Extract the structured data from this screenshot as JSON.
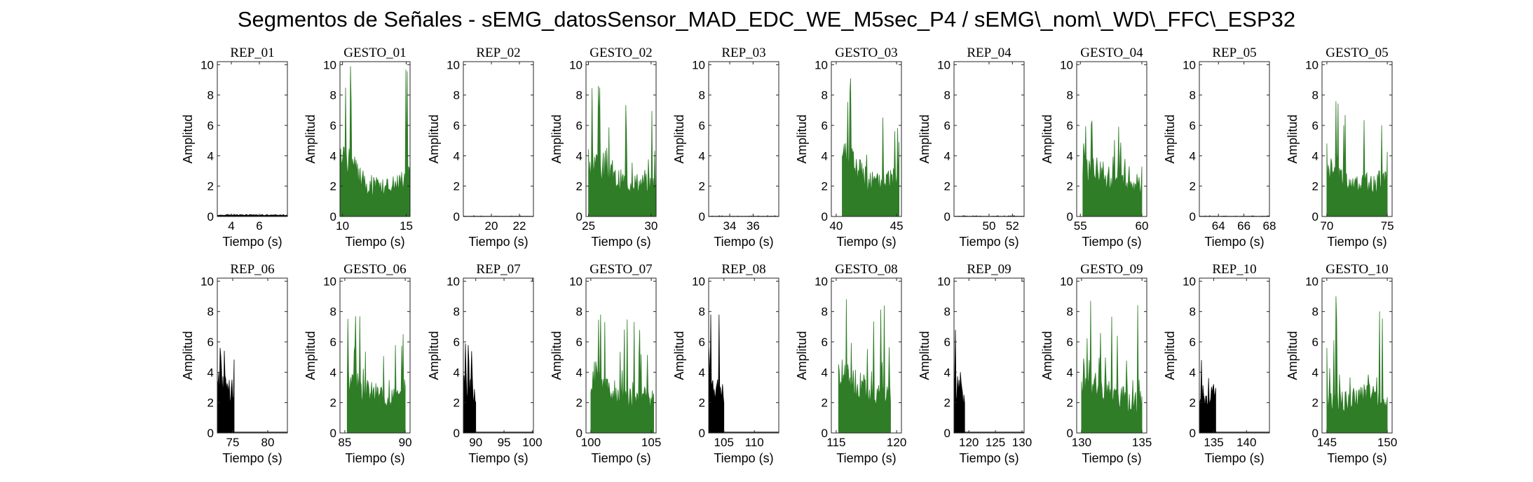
{
  "title": "Segmentos de Señales - sEMG_datosSensor_MAD_EDC_WE_M5sec_P4 / sEMG\\_nom\\_WD\\_FFC\\_ESP32",
  "colors": {
    "rep": "#000000",
    "gesto": "#2f7d27"
  },
  "chart_data": [
    {
      "type": "area",
      "title": "REP_01",
      "kind": "rep",
      "xlabel": "Tiempo (s)",
      "ylabel": "Amplitud",
      "xlim": [
        3,
        8
      ],
      "ylim": [
        0,
        10.2
      ],
      "xticks": [
        4,
        6
      ],
      "yticks": [
        0,
        2,
        4,
        6,
        8,
        10
      ],
      "active": [
        3,
        8
      ],
      "env": [
        0.1,
        0.1,
        0.12,
        0.1,
        0.1
      ],
      "peak": 0.15
    },
    {
      "type": "area",
      "title": "GESTO_01",
      "kind": "gesto",
      "xlabel": "Tiempo (s)",
      "ylabel": "Amplitud",
      "xlim": [
        9.8,
        15.3
      ],
      "ylim": [
        0,
        10.2
      ],
      "xticks": [
        10,
        15
      ],
      "yticks": [
        0,
        2,
        4,
        6,
        8,
        10
      ],
      "active": [
        9.8,
        15.3
      ],
      "env": [
        5,
        3.5,
        2.5,
        2.2,
        2.5,
        3
      ],
      "peak": 9.9
    },
    {
      "type": "area",
      "title": "REP_02",
      "kind": "rep",
      "xlabel": "Tiempo (s)",
      "ylabel": "Amplitud",
      "xlim": [
        18,
        23
      ],
      "ylim": [
        0,
        10.2
      ],
      "xticks": [
        20,
        22
      ],
      "yticks": [
        0,
        2,
        4,
        6,
        8,
        10
      ],
      "active": [
        18,
        23
      ],
      "env": [
        0.02,
        0.02
      ],
      "peak": 0.05
    },
    {
      "type": "area",
      "title": "GESTO_02",
      "kind": "gesto",
      "xlabel": "Tiempo (s)",
      "ylabel": "Amplitud",
      "xlim": [
        24.8,
        30.4
      ],
      "ylim": [
        0,
        10.2
      ],
      "xticks": [
        25,
        30
      ],
      "yticks": [
        0,
        2,
        4,
        6,
        8,
        10
      ],
      "active": [
        25,
        30.4
      ],
      "env": [
        4.5,
        3.6,
        2.8,
        2.6,
        2.5,
        2.4
      ],
      "peak": 8.6
    },
    {
      "type": "area",
      "title": "REP_03",
      "kind": "rep",
      "xlabel": "Tiempo (s)",
      "ylabel": "Amplitud",
      "xlim": [
        32.2,
        38.2
      ],
      "ylim": [
        0,
        10.2
      ],
      "xticks": [
        34,
        36
      ],
      "yticks": [
        0,
        2,
        4,
        6,
        8,
        10
      ],
      "active": [
        32.2,
        38.2
      ],
      "env": [
        0.02,
        0.02
      ],
      "peak": 0.05
    },
    {
      "type": "area",
      "title": "GESTO_03",
      "kind": "gesto",
      "xlabel": "Tiempo (s)",
      "ylabel": "Amplitud",
      "xlim": [
        39.6,
        45.4
      ],
      "ylim": [
        0,
        10.2
      ],
      "xticks": [
        40,
        45
      ],
      "yticks": [
        0,
        2,
        4,
        6,
        8,
        10
      ],
      "active": [
        40.5,
        45.2
      ],
      "env": [
        5,
        4,
        3,
        2.5,
        2.8,
        3.2
      ],
      "peak": 9.1
    },
    {
      "type": "area",
      "title": "REP_04",
      "kind": "rep",
      "xlabel": "Tiempo (s)",
      "ylabel": "Amplitud",
      "xlim": [
        47,
        53
      ],
      "ylim": [
        0,
        10.2
      ],
      "xticks": [
        50,
        52
      ],
      "yticks": [
        0,
        2,
        4,
        6,
        8,
        10
      ],
      "active": [
        47,
        53
      ],
      "env": [
        0.02,
        0.02
      ],
      "peak": 0.05
    },
    {
      "type": "area",
      "title": "GESTO_04",
      "kind": "gesto",
      "xlabel": "Tiempo (s)",
      "ylabel": "Amplitud",
      "xlim": [
        54.7,
        60.4
      ],
      "ylim": [
        0,
        10.2
      ],
      "xticks": [
        55,
        60
      ],
      "yticks": [
        0,
        2,
        4,
        6,
        8,
        10
      ],
      "active": [
        55.2,
        60
      ],
      "env": [
        4.5,
        3.5,
        3,
        2.7,
        2.5,
        2.4
      ],
      "peak": 6.3
    },
    {
      "type": "area",
      "title": "REP_05",
      "kind": "rep",
      "xlabel": "Tiempo (s)",
      "ylabel": "Amplitud",
      "xlim": [
        62.5,
        68
      ],
      "ylim": [
        0,
        10.2
      ],
      "xticks": [
        64,
        66,
        68
      ],
      "yticks": [
        0,
        2,
        4,
        6,
        8,
        10
      ],
      "active": [
        62.5,
        68
      ],
      "env": [
        0.02,
        0.02
      ],
      "peak": 0.05
    },
    {
      "type": "area",
      "title": "GESTO_05",
      "kind": "gesto",
      "xlabel": "Tiempo (s)",
      "ylabel": "Amplitud",
      "xlim": [
        69.6,
        75.4
      ],
      "ylim": [
        0,
        10.2
      ],
      "xticks": [
        70,
        75
      ],
      "yticks": [
        0,
        2,
        4,
        6,
        8,
        10
      ],
      "active": [
        70,
        75
      ],
      "env": [
        3.5,
        3,
        2.6,
        2.5,
        2.6,
        2.7
      ],
      "peak": 7.6
    },
    {
      "type": "area",
      "title": "REP_06",
      "kind": "rep",
      "xlabel": "Tiempo (s)",
      "ylabel": "Amplitud",
      "xlim": [
        72.8,
        82.8
      ],
      "ylim": [
        0,
        10.2
      ],
      "xticks": [
        75,
        80
      ],
      "yticks": [
        0,
        2,
        4,
        6,
        8,
        10
      ],
      "active": [
        72.8,
        75.2
      ],
      "env": [
        3.8,
        3.4,
        3.6,
        4
      ],
      "peak": 5.6
    },
    {
      "type": "area",
      "title": "GESTO_06",
      "kind": "gesto",
      "xlabel": "Tiempo (s)",
      "ylabel": "Amplitud",
      "xlim": [
        84.6,
        90.4
      ],
      "ylim": [
        0,
        10.2
      ],
      "xticks": [
        85,
        90
      ],
      "yticks": [
        0,
        2,
        4,
        6,
        8,
        10
      ],
      "active": [
        85.2,
        90
      ],
      "env": [
        4,
        3.5,
        3,
        2.9,
        2.7,
        2.5
      ],
      "peak": 7.7
    },
    {
      "type": "area",
      "title": "REP_07",
      "kind": "rep",
      "xlabel": "Tiempo (s)",
      "ylabel": "Amplitud",
      "xlim": [
        87.8,
        100.2
      ],
      "ylim": [
        0,
        10.2
      ],
      "xticks": [
        90,
        95,
        100
      ],
      "yticks": [
        0,
        2,
        4,
        6,
        8,
        10
      ],
      "active": [
        87.8,
        90
      ],
      "env": [
        3.8,
        3.5,
        3.2
      ],
      "peak": 5.9
    },
    {
      "type": "area",
      "title": "GESTO_07",
      "kind": "gesto",
      "xlabel": "Tiempo (s)",
      "ylabel": "Amplitud",
      "xlim": [
        99.6,
        105.4
      ],
      "ylim": [
        0,
        10.2
      ],
      "xticks": [
        100,
        105
      ],
      "yticks": [
        0,
        2,
        4,
        6,
        8,
        10
      ],
      "active": [
        100,
        105.2
      ],
      "env": [
        4.5,
        3.6,
        3,
        2.7,
        2.5,
        2.5
      ],
      "peak": 7.8
    },
    {
      "type": "area",
      "title": "REP_08",
      "kind": "rep",
      "xlabel": "Tiempo (s)",
      "ylabel": "Amplitud",
      "xlim": [
        102.5,
        114
      ],
      "ylim": [
        0,
        10.2
      ],
      "xticks": [
        105,
        110
      ],
      "yticks": [
        0,
        2,
        4,
        6,
        8,
        10
      ],
      "active": [
        102.5,
        105
      ],
      "env": [
        4.5,
        4,
        3.5,
        3
      ],
      "peak": 7.8
    },
    {
      "type": "area",
      "title": "GESTO_08",
      "kind": "gesto",
      "xlabel": "Tiempo (s)",
      "ylabel": "Amplitud",
      "xlim": [
        114.6,
        120.4
      ],
      "ylim": [
        0,
        10.2
      ],
      "xticks": [
        115,
        120
      ],
      "yticks": [
        0,
        2,
        4,
        6,
        8,
        10
      ],
      "active": [
        115.2,
        119.5
      ],
      "env": [
        4.5,
        3.8,
        3.4,
        3,
        2.8
      ],
      "peak": 8.8
    },
    {
      "type": "area",
      "title": "REP_09",
      "kind": "rep",
      "xlabel": "Tiempo (s)",
      "ylabel": "Amplitud",
      "xlim": [
        117.2,
        130.4
      ],
      "ylim": [
        0,
        10.2
      ],
      "xticks": [
        120,
        125,
        130
      ],
      "yticks": [
        0,
        2,
        4,
        6,
        8,
        10
      ],
      "active": [
        117.2,
        119.2
      ],
      "env": [
        3.5,
        3.2,
        2.8
      ],
      "peak": 6.8
    },
    {
      "type": "area",
      "title": "GESTO_09",
      "kind": "gesto",
      "xlabel": "Tiempo (s)",
      "ylabel": "Amplitud",
      "xlim": [
        129.6,
        135.4
      ],
      "ylim": [
        0,
        10.2
      ],
      "xticks": [
        130,
        135
      ],
      "yticks": [
        0,
        2,
        4,
        6,
        8,
        10
      ],
      "active": [
        130,
        135
      ],
      "env": [
        4.2,
        3.6,
        3.2,
        2.8,
        2.5,
        2.4
      ],
      "peak": 8.7
    },
    {
      "type": "area",
      "title": "REP_10",
      "kind": "rep",
      "xlabel": "Tiempo (s)",
      "ylabel": "Amplitud",
      "xlim": [
        132.8,
        143.5
      ],
      "ylim": [
        0,
        10.2
      ],
      "xticks": [
        135,
        140
      ],
      "yticks": [
        0,
        2,
        4,
        6,
        8,
        10
      ],
      "active": [
        132.8,
        135.3
      ],
      "env": [
        3,
        2.6,
        2.8,
        3
      ],
      "peak": 4.8
    },
    {
      "type": "area",
      "title": "GESTO_10",
      "kind": "gesto",
      "xlabel": "Tiempo (s)",
      "ylabel": "Amplitud",
      "xlim": [
        144.6,
        150.4
      ],
      "ylim": [
        0,
        10.2
      ],
      "xticks": [
        145,
        150
      ],
      "yticks": [
        0,
        2,
        4,
        6,
        8,
        10
      ],
      "active": [
        145,
        150
      ],
      "env": [
        2.6,
        2.4,
        2.5,
        3,
        2.8,
        2.5
      ],
      "peak": 9.0
    }
  ]
}
